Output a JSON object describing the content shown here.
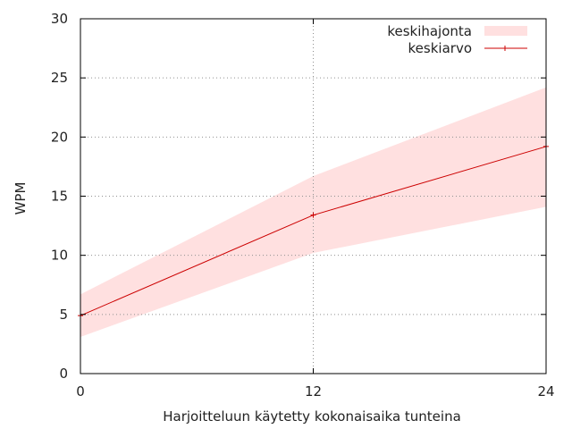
{
  "chart_data": {
    "type": "line",
    "xlabel": "Harjoitteluun käytetty kokonaisaika tunteina",
    "ylabel": "WPM",
    "xlim": [
      0,
      24
    ],
    "ylim": [
      0,
      30
    ],
    "xticks": [
      0,
      12,
      24
    ],
    "yticks": [
      0,
      5,
      10,
      15,
      20,
      25,
      30
    ],
    "grid": true,
    "legend_position": "top-right",
    "series": [
      {
        "name": "keskiarvo",
        "kind": "line",
        "color": "#cc0000",
        "x": [
          0,
          12,
          24
        ],
        "y": [
          4.9,
          13.4,
          19.2
        ]
      },
      {
        "name": "keskihajonta",
        "kind": "band",
        "color": "#ffe0e0",
        "x": [
          0,
          12,
          24
        ],
        "lower": [
          3.1,
          10.2,
          14.1
        ],
        "upper": [
          6.7,
          16.7,
          24.2
        ]
      }
    ]
  }
}
